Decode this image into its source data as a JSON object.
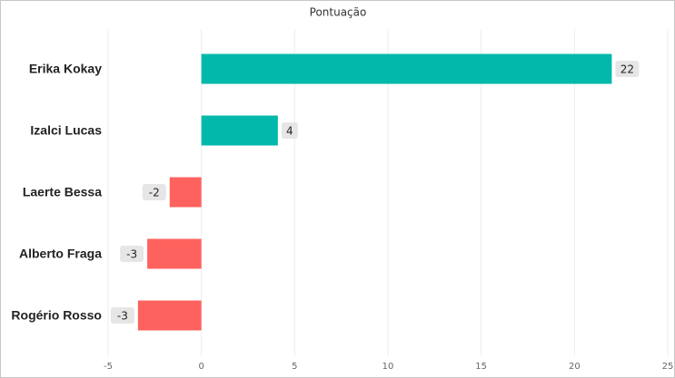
{
  "chart_data": {
    "type": "hbar",
    "title": "Pontuação",
    "categories": [
      "Erika Kokay",
      "Izalci Lucas",
      "Laerte Bessa",
      "Alberto Fraga",
      "Rogério Rosso"
    ],
    "values": [
      22,
      4.1,
      -1.7,
      -2.9,
      -3.4
    ],
    "value_labels": [
      "22",
      "4",
      "-2",
      "-3",
      "-3"
    ],
    "colors": [
      "#01b8aa",
      "#01b8aa",
      "#fd625e",
      "#fd625e",
      "#fd625e"
    ],
    "xlim": [
      -5,
      25
    ],
    "xticks": [
      -5,
      0,
      5,
      10,
      15,
      20,
      25
    ],
    "grid": true
  }
}
